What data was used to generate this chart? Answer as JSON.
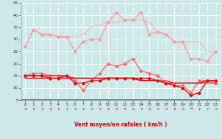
{
  "xlabel": "Vent moyen/en rafales ( km/h )",
  "xlim_min": -0.5,
  "xlim_max": 23.5,
  "ylim_min": 5,
  "ylim_max": 45,
  "yticks": [
    5,
    10,
    15,
    20,
    25,
    30,
    35,
    40,
    45
  ],
  "xticks": [
    0,
    1,
    2,
    3,
    4,
    5,
    6,
    7,
    8,
    9,
    10,
    11,
    12,
    13,
    14,
    15,
    16,
    17,
    18,
    19,
    20,
    21,
    22,
    23
  ],
  "bg_color": "#cde8e8",
  "grid_color": "#ffffff",
  "series": [
    {
      "color": "#ffb3b3",
      "linewidth": 1.0,
      "marker": null,
      "values": [
        27,
        34,
        32,
        32,
        31,
        31,
        31,
        32,
        35,
        36,
        37,
        37,
        38,
        38,
        38,
        37,
        33,
        32,
        29,
        29,
        29,
        29,
        25,
        25
      ]
    },
    {
      "color": "#ff9999",
      "linewidth": 1.0,
      "marker": "D",
      "markersize": 2.0,
      "values": [
        27,
        34,
        32,
        32,
        31,
        31,
        25,
        29,
        30,
        30,
        37,
        41,
        38,
        38,
        41,
        32,
        33,
        32,
        29,
        29,
        22,
        22,
        21,
        25
      ]
    },
    {
      "color": "#ff6666",
      "linewidth": 1.0,
      "marker": "D",
      "markersize": 2.0,
      "values": [
        15,
        16,
        16,
        15,
        15,
        15,
        13,
        9,
        13,
        16,
        20,
        19,
        20,
        22,
        17,
        16,
        15,
        12,
        11,
        11,
        8,
        13,
        13,
        12
      ]
    },
    {
      "color": "#ff2222",
      "linewidth": 1.0,
      "marker": null,
      "values": [
        15,
        15,
        15,
        15,
        15,
        15,
        14,
        14,
        14,
        14,
        14,
        14,
        14,
        14,
        13,
        13,
        13,
        13,
        12,
        12,
        12,
        12,
        12,
        12
      ]
    },
    {
      "color": "#cc0000",
      "linewidth": 1.0,
      "marker": null,
      "values": [
        14,
        14,
        14,
        14,
        14,
        14,
        14,
        14,
        14,
        14,
        14,
        14,
        14,
        14,
        13,
        13,
        13,
        12,
        12,
        12,
        12,
        12,
        13,
        13
      ]
    },
    {
      "color": "#dd1111",
      "linewidth": 1.0,
      "marker": "D",
      "markersize": 2.0,
      "values": [
        15,
        15,
        15,
        14,
        14,
        15,
        12,
        12,
        13,
        13,
        14,
        14,
        14,
        14,
        14,
        14,
        13,
        12,
        11,
        10,
        7,
        8,
        13,
        13
      ]
    }
  ],
  "arrow_angles": [
    225,
    225,
    225,
    225,
    225,
    225,
    225,
    225,
    225,
    225,
    225,
    225,
    225,
    225,
    225,
    225,
    225,
    225,
    225,
    225,
    270,
    225,
    225,
    225
  ]
}
